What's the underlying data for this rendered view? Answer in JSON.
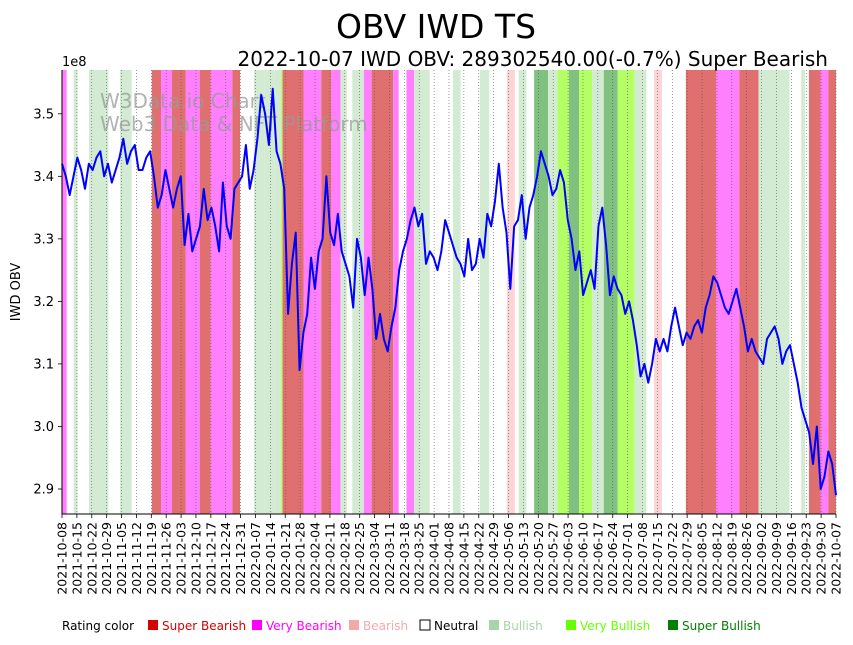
{
  "chart_data": {
    "type": "line",
    "title": "OBV IWD TS",
    "subtitle": "2022-10-07 IWD OBV: 289302540.00(-0.7%) Super Bearish",
    "ylabel": "IWD OBV",
    "xlabel": "",
    "y_scale_note": "1e8",
    "ylim": [
      2.86,
      3.57
    ],
    "ytick_values": [
      2.9,
      3.0,
      3.1,
      3.2,
      3.3,
      3.4,
      3.5
    ],
    "ytick_labels": [
      "2.9",
      "3.0",
      "3.1",
      "3.2",
      "3.3",
      "3.4",
      "3.5"
    ],
    "xtick_labels": [
      "2021-10-08",
      "2021-10-15",
      "2021-10-22",
      "2021-10-29",
      "2021-11-05",
      "2021-11-12",
      "2021-11-19",
      "2021-11-26",
      "2021-12-03",
      "2021-12-10",
      "2021-12-17",
      "2021-12-24",
      "2021-12-31",
      "2022-01-07",
      "2022-01-14",
      "2022-01-21",
      "2022-01-28",
      "2022-02-04",
      "2022-02-11",
      "2022-02-18",
      "2022-02-25",
      "2022-03-04",
      "2022-03-11",
      "2022-03-18",
      "2022-03-25",
      "2022-04-01",
      "2022-04-08",
      "2022-04-15",
      "2022-04-22",
      "2022-04-29",
      "2022-05-06",
      "2022-05-13",
      "2022-05-20",
      "2022-05-27",
      "2022-06-03",
      "2022-06-10",
      "2022-06-17",
      "2022-06-24",
      "2022-07-01",
      "2022-07-08",
      "2022-07-15",
      "2022-07-22",
      "2022-07-29",
      "2022-08-05",
      "2022-08-12",
      "2022-08-19",
      "2022-08-26",
      "2022-09-02",
      "2022-09-09",
      "2022-09-16",
      "2022-09-23",
      "2022-09-30",
      "2022-10-07"
    ],
    "watermark": [
      "W3Data.io Chart",
      "Web3 Data & NFT Platform"
    ],
    "grid": "vertical dotted",
    "series": [
      {
        "name": "IWD OBV",
        "color": "#0000ff",
        "x_start": "2021-10-08",
        "x_end": "2022-10-07",
        "values": [
          3.42,
          3.4,
          3.37,
          3.4,
          3.43,
          3.41,
          3.38,
          3.42,
          3.41,
          3.43,
          3.44,
          3.4,
          3.42,
          3.39,
          3.41,
          3.43,
          3.46,
          3.42,
          3.44,
          3.45,
          3.41,
          3.41,
          3.43,
          3.44,
          3.4,
          3.35,
          3.37,
          3.41,
          3.38,
          3.35,
          3.38,
          3.4,
          3.29,
          3.34,
          3.28,
          3.3,
          3.32,
          3.38,
          3.33,
          3.35,
          3.32,
          3.28,
          3.39,
          3.32,
          3.3,
          3.38,
          3.39,
          3.4,
          3.45,
          3.38,
          3.41,
          3.46,
          3.53,
          3.5,
          3.45,
          3.54,
          3.44,
          3.42,
          3.38,
          3.18,
          3.26,
          3.31,
          3.09,
          3.15,
          3.18,
          3.27,
          3.22,
          3.28,
          3.3,
          3.4,
          3.31,
          3.29,
          3.34,
          3.28,
          3.26,
          3.24,
          3.19,
          3.3,
          3.27,
          3.21,
          3.27,
          3.22,
          3.14,
          3.18,
          3.14,
          3.12,
          3.16,
          3.19,
          3.25,
          3.28,
          3.3,
          3.33,
          3.35,
          3.32,
          3.34,
          3.26,
          3.28,
          3.27,
          3.25,
          3.28,
          3.33,
          3.31,
          3.29,
          3.27,
          3.26,
          3.24,
          3.3,
          3.25,
          3.26,
          3.3,
          3.27,
          3.34,
          3.32,
          3.36,
          3.42,
          3.35,
          3.31,
          3.22,
          3.32,
          3.33,
          3.37,
          3.3,
          3.35,
          3.37,
          3.4,
          3.44,
          3.42,
          3.4,
          3.37,
          3.38,
          3.41,
          3.39,
          3.33,
          3.3,
          3.25,
          3.28,
          3.21,
          3.23,
          3.25,
          3.22,
          3.32,
          3.35,
          3.29,
          3.21,
          3.24,
          3.22,
          3.21,
          3.18,
          3.2,
          3.17,
          3.13,
          3.08,
          3.1,
          3.07,
          3.1,
          3.14,
          3.12,
          3.14,
          3.12,
          3.16,
          3.19,
          3.16,
          3.13,
          3.15,
          3.14,
          3.16,
          3.17,
          3.15,
          3.19,
          3.21,
          3.24,
          3.23,
          3.21,
          3.19,
          3.18,
          3.2,
          3.22,
          3.19,
          3.16,
          3.12,
          3.14,
          3.12,
          3.11,
          3.1,
          3.14,
          3.15,
          3.16,
          3.14,
          3.1,
          3.12,
          3.13,
          3.1,
          3.07,
          3.03,
          3.01,
          2.99,
          2.94,
          3.0,
          2.9,
          2.92,
          2.96,
          2.94,
          2.89
        ]
      }
    ],
    "rating_bands_legend_order": [
      "Super Bearish",
      "Very Bearish",
      "Bearish",
      "Neutral",
      "Bullish",
      "Very Bullish",
      "Super Bullish"
    ],
    "rating_bands": [
      {
        "rating": "Very Bearish",
        "start": 0.0,
        "end": 0.006
      },
      {
        "rating": "Bullish",
        "start": 0.015,
        "end": 0.02
      },
      {
        "rating": "Bullish",
        "start": 0.035,
        "end": 0.06
      },
      {
        "rating": "Bullish",
        "start": 0.075,
        "end": 0.09
      },
      {
        "rating": "Bullish",
        "start": 0.125,
        "end": 0.155
      },
      {
        "rating": "Bullish",
        "start": 0.165,
        "end": 0.185
      },
      {
        "rating": "Super Bearish",
        "start": 0.116,
        "end": 0.128
      },
      {
        "rating": "Very Bearish",
        "start": 0.128,
        "end": 0.142
      },
      {
        "rating": "Super Bearish",
        "start": 0.142,
        "end": 0.16
      },
      {
        "rating": "Very Bearish",
        "start": 0.16,
        "end": 0.178
      },
      {
        "rating": "Super Bearish",
        "start": 0.178,
        "end": 0.192
      },
      {
        "rating": "Very Bearish",
        "start": 0.192,
        "end": 0.22
      },
      {
        "rating": "Super Bearish",
        "start": 0.22,
        "end": 0.23
      },
      {
        "rating": "Bullish",
        "start": 0.248,
        "end": 0.262
      },
      {
        "rating": "Bullish",
        "start": 0.262,
        "end": 0.275
      },
      {
        "rating": "Bullish",
        "start": 0.275,
        "end": 0.283
      },
      {
        "rating": "Very Bullish",
        "start": 0.283,
        "end": 0.288
      },
      {
        "rating": "Super Bullish",
        "start": 0.288,
        "end": 0.292
      },
      {
        "rating": "Super Bearish",
        "start": 0.285,
        "end": 0.312
      },
      {
        "rating": "Very Bearish",
        "start": 0.312,
        "end": 0.335
      },
      {
        "rating": "Super Bearish",
        "start": 0.335,
        "end": 0.348
      },
      {
        "rating": "Very Bearish",
        "start": 0.348,
        "end": 0.36
      },
      {
        "rating": "Bullish",
        "start": 0.36,
        "end": 0.368
      },
      {
        "rating": "Bullish",
        "start": 0.375,
        "end": 0.39
      },
      {
        "rating": "Very Bearish",
        "start": 0.39,
        "end": 0.4
      },
      {
        "rating": "Super Bearish",
        "start": 0.4,
        "end": 0.428
      },
      {
        "rating": "Very Bearish",
        "start": 0.428,
        "end": 0.435
      },
      {
        "rating": "Very Bearish",
        "start": 0.445,
        "end": 0.455
      },
      {
        "rating": "Bullish",
        "start": 0.455,
        "end": 0.475
      },
      {
        "rating": "Bullish",
        "start": 0.505,
        "end": 0.515
      },
      {
        "rating": "Bullish",
        "start": 0.54,
        "end": 0.552
      },
      {
        "rating": "Bearish",
        "start": 0.575,
        "end": 0.585
      },
      {
        "rating": "Bullish",
        "start": 0.59,
        "end": 0.6
      },
      {
        "rating": "Super Bullish",
        "start": 0.61,
        "end": 0.628
      },
      {
        "rating": "Bullish",
        "start": 0.628,
        "end": 0.64
      },
      {
        "rating": "Very Bullish",
        "start": 0.64,
        "end": 0.655
      },
      {
        "rating": "Super Bullish",
        "start": 0.655,
        "end": 0.668
      },
      {
        "rating": "Very Bullish",
        "start": 0.668,
        "end": 0.685
      },
      {
        "rating": "Bullish",
        "start": 0.685,
        "end": 0.7
      },
      {
        "rating": "Super Bullish",
        "start": 0.7,
        "end": 0.718
      },
      {
        "rating": "Very Bullish",
        "start": 0.718,
        "end": 0.74
      },
      {
        "rating": "Bullish",
        "start": 0.74,
        "end": 0.755
      },
      {
        "rating": "Bearish",
        "start": 0.765,
        "end": 0.775
      },
      {
        "rating": "Super Bearish",
        "start": 0.806,
        "end": 0.845
      },
      {
        "rating": "Very Bearish",
        "start": 0.845,
        "end": 0.875
      },
      {
        "rating": "Super Bearish",
        "start": 0.875,
        "end": 0.9
      },
      {
        "rating": "Bullish",
        "start": 0.9,
        "end": 0.94
      },
      {
        "rating": "Bullish",
        "start": 0.955,
        "end": 0.96
      },
      {
        "rating": "Super Bearish",
        "start": 0.965,
        "end": 0.98
      },
      {
        "rating": "Very Bearish",
        "start": 0.98,
        "end": 0.99
      },
      {
        "rating": "Super Bearish",
        "start": 0.99,
        "end": 1.0
      }
    ],
    "legend": {
      "title": "Rating color",
      "placement": "bottom",
      "items": [
        {
          "label": "Super Bearish",
          "color": "#d70000",
          "band_color": "#e07070"
        },
        {
          "label": "Very Bearish",
          "color": "#ff00ff",
          "band_color": "#ff7fff"
        },
        {
          "label": "Bearish",
          "color": "#f4a9a9",
          "band_color": "#fdd4d4"
        },
        {
          "label": "Neutral",
          "color": "#ffffff",
          "band_color": "#ffffff"
        },
        {
          "label": "Bullish",
          "color": "#a8d5a8",
          "band_color": "#d3ebd3"
        },
        {
          "label": "Very Bullish",
          "color": "#66ff00",
          "band_color": "#b4ff66"
        },
        {
          "label": "Super Bullish",
          "color": "#008000",
          "band_color": "#80c080"
        }
      ]
    }
  }
}
